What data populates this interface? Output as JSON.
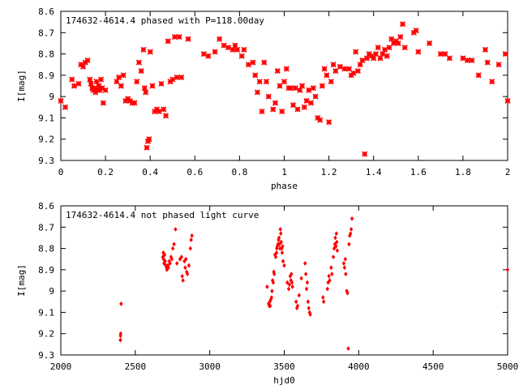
{
  "chart_data": [
    {
      "type": "scatter",
      "title": "174632-4614.4 phased with P=118.00day",
      "xlabel": "phase",
      "ylabel": "I[mag]",
      "xlim": [
        0,
        2
      ],
      "ylim": [
        8.6,
        9.3
      ],
      "y_inverted": true,
      "x_ticks": [
        "0",
        "0.2",
        "0.4",
        "0.6",
        "0.8",
        "1",
        "1.2",
        "1.4",
        "1.6",
        "1.8",
        "2"
      ],
      "y_ticks": [
        "8.6",
        "8.7",
        "8.8",
        "8.9",
        "9",
        "9.1",
        "9.2",
        "9.3"
      ],
      "grid": false,
      "marker": "cross",
      "color": "#ff0000",
      "points": [
        [
          0.0,
          9.02
        ],
        [
          0.02,
          9.05
        ],
        [
          0.05,
          8.92
        ],
        [
          0.06,
          8.95
        ],
        [
          0.08,
          8.94
        ],
        [
          0.09,
          8.85
        ],
        [
          0.1,
          8.86
        ],
        [
          0.11,
          8.84
        ],
        [
          0.12,
          8.83
        ],
        [
          0.13,
          8.92
        ],
        [
          0.135,
          8.94
        ],
        [
          0.14,
          8.96
        ],
        [
          0.145,
          8.97
        ],
        [
          0.15,
          8.96
        ],
        [
          0.155,
          8.98
        ],
        [
          0.16,
          8.93
        ],
        [
          0.165,
          8.97
        ],
        [
          0.17,
          8.95
        ],
        [
          0.175,
          8.97
        ],
        [
          0.18,
          8.92
        ],
        [
          0.185,
          8.96
        ],
        [
          0.19,
          9.03
        ],
        [
          0.2,
          8.97
        ],
        [
          0.25,
          8.93
        ],
        [
          0.26,
          8.91
        ],
        [
          0.27,
          8.95
        ],
        [
          0.28,
          8.9
        ],
        [
          0.29,
          9.02
        ],
        [
          0.3,
          9.01
        ],
        [
          0.31,
          9.02
        ],
        [
          0.32,
          9.03
        ],
        [
          0.33,
          9.03
        ],
        [
          0.34,
          8.93
        ],
        [
          0.35,
          8.84
        ],
        [
          0.36,
          8.88
        ],
        [
          0.37,
          8.78
        ],
        [
          0.375,
          8.96
        ],
        [
          0.38,
          8.98
        ],
        [
          0.385,
          9.24
        ],
        [
          0.39,
          9.21
        ],
        [
          0.395,
          9.2
        ],
        [
          0.4,
          8.79
        ],
        [
          0.41,
          8.95
        ],
        [
          0.42,
          9.07
        ],
        [
          0.43,
          9.06
        ],
        [
          0.44,
          9.07
        ],
        [
          0.45,
          8.94
        ],
        [
          0.46,
          9.06
        ],
        [
          0.47,
          9.09
        ],
        [
          0.48,
          8.74
        ],
        [
          0.49,
          8.93
        ],
        [
          0.5,
          8.92
        ],
        [
          0.51,
          8.72
        ],
        [
          0.52,
          8.91
        ],
        [
          0.53,
          8.72
        ],
        [
          0.54,
          8.91
        ],
        [
          0.57,
          8.73
        ],
        [
          0.64,
          8.8
        ],
        [
          0.66,
          8.81
        ],
        [
          0.69,
          8.79
        ],
        [
          0.71,
          8.73
        ],
        [
          0.73,
          8.76
        ],
        [
          0.75,
          8.77
        ],
        [
          0.77,
          8.78
        ],
        [
          0.78,
          8.76
        ],
        [
          0.79,
          8.78
        ],
        [
          0.81,
          8.81
        ],
        [
          0.82,
          8.78
        ],
        [
          0.84,
          8.85
        ],
        [
          0.86,
          8.84
        ],
        [
          0.87,
          8.9
        ],
        [
          0.88,
          8.98
        ],
        [
          0.89,
          8.93
        ],
        [
          0.9,
          9.07
        ],
        [
          0.91,
          8.84
        ],
        [
          0.92,
          8.93
        ],
        [
          0.93,
          9.0
        ],
        [
          0.95,
          9.06
        ],
        [
          0.96,
          9.03
        ],
        [
          0.97,
          8.88
        ],
        [
          0.98,
          8.95
        ],
        [
          0.99,
          9.07
        ],
        [
          1.0,
          8.93
        ],
        [
          1.01,
          8.87
        ],
        [
          1.02,
          8.96
        ],
        [
          1.03,
          8.96
        ],
        [
          1.04,
          9.04
        ],
        [
          1.05,
          8.96
        ],
        [
          1.06,
          9.06
        ],
        [
          1.07,
          8.97
        ],
        [
          1.08,
          8.95
        ],
        [
          1.09,
          9.05
        ],
        [
          1.1,
          9.02
        ],
        [
          1.11,
          8.97
        ],
        [
          1.12,
          9.03
        ],
        [
          1.13,
          8.96
        ],
        [
          1.14,
          9.0
        ],
        [
          1.15,
          9.1
        ],
        [
          1.16,
          9.11
        ],
        [
          1.17,
          8.95
        ],
        [
          1.18,
          8.87
        ],
        [
          1.19,
          8.9
        ],
        [
          1.2,
          9.12
        ],
        [
          1.21,
          8.93
        ],
        [
          1.22,
          8.85
        ],
        [
          1.23,
          8.88
        ],
        [
          1.25,
          8.86
        ],
        [
          1.27,
          8.87
        ],
        [
          1.29,
          8.87
        ],
        [
          1.3,
          8.9
        ],
        [
          1.31,
          8.89
        ],
        [
          1.32,
          8.79
        ],
        [
          1.33,
          8.88
        ],
        [
          1.34,
          8.85
        ],
        [
          1.35,
          8.83
        ],
        [
          1.36,
          9.27
        ],
        [
          1.37,
          8.82
        ],
        [
          1.38,
          8.8
        ],
        [
          1.39,
          8.81
        ],
        [
          1.4,
          8.82
        ],
        [
          1.41,
          8.8
        ],
        [
          1.42,
          8.77
        ],
        [
          1.43,
          8.82
        ],
        [
          1.44,
          8.8
        ],
        [
          1.45,
          8.78
        ],
        [
          1.46,
          8.81
        ],
        [
          1.47,
          8.77
        ],
        [
          1.48,
          8.73
        ],
        [
          1.49,
          8.75
        ],
        [
          1.5,
          8.74
        ],
        [
          1.51,
          8.75
        ],
        [
          1.52,
          8.72
        ],
        [
          1.53,
          8.66
        ],
        [
          1.54,
          8.77
        ],
        [
          1.58,
          8.7
        ],
        [
          1.59,
          8.69
        ],
        [
          1.6,
          8.79
        ],
        [
          1.65,
          8.75
        ],
        [
          1.7,
          8.8
        ],
        [
          1.72,
          8.8
        ],
        [
          1.74,
          8.82
        ],
        [
          1.8,
          8.82
        ],
        [
          1.82,
          8.83
        ],
        [
          1.84,
          8.83
        ],
        [
          1.87,
          8.9
        ],
        [
          1.9,
          8.78
        ],
        [
          1.91,
          8.84
        ],
        [
          1.93,
          8.93
        ],
        [
          1.96,
          8.85
        ],
        [
          1.99,
          8.8
        ],
        [
          2.0,
          9.02
        ]
      ]
    },
    {
      "type": "scatter",
      "title": "174632-4614.4 not phased light curve",
      "xlabel": "hjd0",
      "ylabel": "I[mag]",
      "xlim": [
        2000,
        5000
      ],
      "ylim": [
        8.6,
        9.3
      ],
      "y_inverted": true,
      "x_ticks": [
        "2000",
        "2500",
        "3000",
        "3500",
        "4000",
        "4500",
        "5000"
      ],
      "y_ticks": [
        "8.6",
        "8.7",
        "8.8",
        "8.9",
        "9",
        "9.1",
        "9.2",
        "9.3"
      ],
      "grid": false,
      "marker": "diamond",
      "color": "#ff0000",
      "points": [
        [
          2400,
          9.23
        ],
        [
          2401,
          9.21
        ],
        [
          2402,
          9.2
        ],
        [
          2405,
          9.06
        ],
        [
          2685,
          8.84
        ],
        [
          2688,
          8.82
        ],
        [
          2690,
          8.85
        ],
        [
          2693,
          8.87
        ],
        [
          2697,
          8.83
        ],
        [
          2700,
          8.86
        ],
        [
          2705,
          8.88
        ],
        [
          2710,
          8.89
        ],
        [
          2712,
          8.9
        ],
        [
          2718,
          8.88
        ],
        [
          2722,
          8.89
        ],
        [
          2728,
          8.86
        ],
        [
          2733,
          8.87
        ],
        [
          2740,
          8.84
        ],
        [
          2745,
          8.85
        ],
        [
          2752,
          8.8
        ],
        [
          2760,
          8.78
        ],
        [
          2770,
          8.71
        ],
        [
          2780,
          8.87
        ],
        [
          2800,
          8.85
        ],
        [
          2810,
          8.84
        ],
        [
          2815,
          8.93
        ],
        [
          2820,
          8.95
        ],
        [
          2830,
          8.86
        ],
        [
          2835,
          8.89
        ],
        [
          2840,
          8.85
        ],
        [
          2845,
          8.91
        ],
        [
          2850,
          8.92
        ],
        [
          2860,
          8.88
        ],
        [
          2870,
          8.8
        ],
        [
          2875,
          8.76
        ],
        [
          2880,
          8.74
        ],
        [
          3385,
          8.98
        ],
        [
          3395,
          9.06
        ],
        [
          3400,
          9.07
        ],
        [
          3403,
          9.05
        ],
        [
          3406,
          9.07
        ],
        [
          3410,
          9.04
        ],
        [
          3415,
          9.03
        ],
        [
          3418,
          9.0
        ],
        [
          3422,
          8.95
        ],
        [
          3426,
          8.96
        ],
        [
          3430,
          8.91
        ],
        [
          3433,
          8.92
        ],
        [
          3438,
          8.83
        ],
        [
          3443,
          8.84
        ],
        [
          3448,
          8.82
        ],
        [
          3450,
          8.8
        ],
        [
          3453,
          8.79
        ],
        [
          3458,
          8.78
        ],
        [
          3462,
          8.76
        ],
        [
          3465,
          8.75
        ],
        [
          3468,
          8.78
        ],
        [
          3471,
          8.8
        ],
        [
          3474,
          8.71
        ],
        [
          3477,
          8.73
        ],
        [
          3480,
          8.77
        ],
        [
          3483,
          8.8
        ],
        [
          3486,
          8.82
        ],
        [
          3489,
          8.79
        ],
        [
          3492,
          8.86
        ],
        [
          3500,
          8.88
        ],
        [
          3520,
          8.96
        ],
        [
          3530,
          8.99
        ],
        [
          3535,
          8.97
        ],
        [
          3540,
          8.93
        ],
        [
          3545,
          8.95
        ],
        [
          3548,
          8.92
        ],
        [
          3552,
          8.96
        ],
        [
          3555,
          8.98
        ],
        [
          3580,
          9.05
        ],
        [
          3585,
          9.08
        ],
        [
          3590,
          9.07
        ],
        [
          3600,
          9.02
        ],
        [
          3615,
          8.94
        ],
        [
          3640,
          8.87
        ],
        [
          3645,
          8.92
        ],
        [
          3650,
          8.99
        ],
        [
          3655,
          8.96
        ],
        [
          3660,
          9.05
        ],
        [
          3665,
          9.08
        ],
        [
          3670,
          9.1
        ],
        [
          3675,
          9.11
        ],
        [
          3760,
          9.03
        ],
        [
          3765,
          9.05
        ],
        [
          3790,
          8.99
        ],
        [
          3795,
          8.96
        ],
        [
          3800,
          8.93
        ],
        [
          3805,
          8.95
        ],
        [
          3815,
          8.89
        ],
        [
          3820,
          8.92
        ],
        [
          3830,
          8.84
        ],
        [
          3835,
          8.8
        ],
        [
          3840,
          8.78
        ],
        [
          3843,
          8.75
        ],
        [
          3847,
          8.79
        ],
        [
          3850,
          8.73
        ],
        [
          3853,
          8.77
        ],
        [
          3856,
          8.81
        ],
        [
          3900,
          8.87
        ],
        [
          3905,
          8.89
        ],
        [
          3910,
          8.85
        ],
        [
          3913,
          8.92
        ],
        [
          3920,
          9.0
        ],
        [
          3925,
          9.01
        ],
        [
          3930,
          9.27
        ],
        [
          3935,
          8.78
        ],
        [
          3940,
          8.74
        ],
        [
          3945,
          8.73
        ],
        [
          3950,
          8.71
        ],
        [
          3955,
          8.66
        ],
        [
          5000,
          8.9
        ]
      ]
    }
  ]
}
